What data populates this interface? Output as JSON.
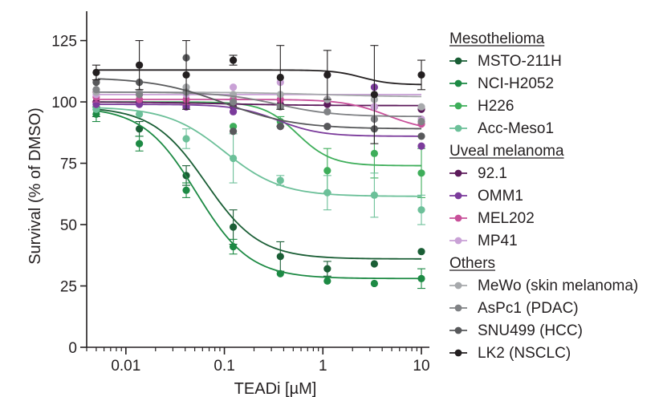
{
  "chart_data": {
    "type": "scatter",
    "title": "",
    "xlabel": "TEADi [µM]",
    "ylabel": "Survival (% of DMSO)",
    "xscale": "log",
    "xlim": [
      0.004,
      10
    ],
    "ylim": [
      0,
      135
    ],
    "xticks": [
      0.01,
      0.1,
      1,
      10
    ],
    "xtick_labels": [
      "0.01",
      "0.1",
      "1",
      "10"
    ],
    "yticks": [
      0,
      25,
      50,
      75,
      100,
      125
    ],
    "ytick_labels": [
      "0",
      "25",
      "50",
      "75",
      "100",
      "125"
    ],
    "x": [
      0.005,
      0.0137,
      0.041,
      0.123,
      0.37,
      1.11,
      3.33,
      10
    ],
    "legend_position": "right",
    "groups": [
      {
        "name": "Mesothelioma",
        "series": [
          "MSTO-211H",
          "NCI-H2052",
          "H226",
          "Acc-Meso1"
        ]
      },
      {
        "name": "Uveal melanoma",
        "series": [
          "92.1",
          "OMM1",
          "MEL202",
          "MP41"
        ]
      },
      {
        "name": "Others",
        "series": [
          "MeWo (skin melanoma)",
          "AsPc1 (PDAC)",
          "SNU499 (HCC)",
          "LK2 (NSCLC)"
        ]
      }
    ],
    "series": [
      {
        "name": "MSTO-211H",
        "color": "#1a5e35",
        "values": [
          97,
          89,
          70,
          49,
          37,
          32,
          34,
          39
        ],
        "errors": [
          3,
          3,
          4,
          7,
          6,
          3,
          0,
          0
        ],
        "fit": {
          "top": 98,
          "bottom": 36,
          "ec50": 0.065,
          "hill": 1.6
        }
      },
      {
        "name": "NCI-H2052",
        "color": "#1d8a44",
        "values": [
          95,
          83,
          64,
          41,
          30,
          27,
          26,
          28
        ],
        "errors": [
          3,
          3,
          3,
          3,
          0,
          0,
          0,
          4
        ],
        "fit": {
          "top": 98,
          "bottom": 28,
          "ec50": 0.052,
          "hill": 1.6
        }
      },
      {
        "name": "H226",
        "color": "#3eae5a",
        "values": [
          100,
          100,
          99,
          90,
          92,
          72,
          79,
          71
        ],
        "errors": [
          0,
          0,
          0,
          0,
          2,
          9,
          10,
          10
        ],
        "fit": {
          "top": 100,
          "bottom": 74,
          "ec50": 0.55,
          "hill": 2.5
        }
      },
      {
        "name": "Acc-Meso1",
        "color": "#6cc099",
        "values": [
          97,
          95,
          85,
          77,
          68,
          63,
          62,
          56
        ],
        "errors": [
          0,
          0,
          4,
          10,
          2,
          7,
          9,
          6
        ],
        "fit": {
          "top": 98,
          "bottom": 61.5,
          "ec50": 0.1,
          "hill": 1.5
        }
      },
      {
        "name": "92.1",
        "color": "#5c1a5a",
        "values": [
          100,
          100,
          98,
          98,
          99,
          99,
          98,
          97
        ],
        "errors": [
          0,
          0,
          0,
          0,
          0,
          0,
          0,
          0
        ],
        "fit": {
          "top": 100,
          "bottom": 98.5,
          "ec50": 0.1,
          "hill": 1
        }
      },
      {
        "name": "OMM1",
        "color": "#7b3b9b",
        "values": [
          99,
          99,
          98,
          96,
          90,
          90,
          106,
          82
        ],
        "errors": [
          0,
          0,
          0,
          0,
          0,
          0,
          0,
          0
        ],
        "fit": {
          "top": 99,
          "bottom": 86,
          "ec50": 0.35,
          "hill": 2
        }
      },
      {
        "name": "MEL202",
        "color": "#c8509a",
        "values": [
          102,
          101,
          101,
          101,
          101,
          101,
          98,
          91
        ],
        "errors": [
          2,
          0,
          2,
          0,
          0,
          0,
          0,
          0
        ],
        "fit": {
          "top": 101,
          "bottom": 88,
          "ec50": 4.5,
          "hill": 2
        }
      },
      {
        "name": "MP41",
        "color": "#c9a1d6",
        "values": [
          103,
          103,
          103,
          106,
          108,
          111,
          98,
          93
        ],
        "errors": [
          0,
          0,
          0,
          0,
          0,
          0,
          0,
          0
        ],
        "fit": {
          "top": 103,
          "bottom": 103,
          "ec50": 1,
          "hill": 1
        }
      },
      {
        "name": "MeWo (skin melanoma)",
        "color": "#a7a9ac",
        "values": [
          104,
          104,
          106,
          103,
          103,
          101,
          101,
          98
        ],
        "errors": [
          0,
          0,
          0,
          0,
          0,
          0,
          0,
          0
        ],
        "fit": {
          "top": 104,
          "bottom": 102,
          "ec50": 1,
          "hill": 1
        }
      },
      {
        "name": "AsPc1 (PDAC)",
        "color": "#808285",
        "values": [
          105,
          103,
          104,
          100,
          98,
          96,
          93,
          92
        ],
        "errors": [
          0,
          0,
          0,
          0,
          0,
          0,
          0,
          0
        ],
        "fit": {
          "top": 104,
          "bottom": 94,
          "ec50": 0.35,
          "hill": 1.5
        }
      },
      {
        "name": "SNU499 (HCC)",
        "color": "#58595b",
        "values": [
          108,
          108,
          118,
          88,
          90,
          90,
          89,
          86
        ],
        "errors": [
          0,
          0,
          0,
          0,
          0,
          0,
          0,
          0
        ],
        "fit": {
          "top": 110,
          "bottom": 89,
          "ec50": 0.1,
          "hill": 1.2
        }
      },
      {
        "name": "LK2 (NSCLC)",
        "color": "#231f20",
        "values": [
          112,
          115,
          111,
          117,
          110,
          111,
          103,
          111
        ],
        "errors": [
          3,
          10,
          14,
          2,
          13,
          10,
          20,
          6
        ],
        "fit": {
          "top": 113,
          "bottom": 107,
          "ec50": 2.5,
          "hill": 3
        }
      }
    ]
  }
}
